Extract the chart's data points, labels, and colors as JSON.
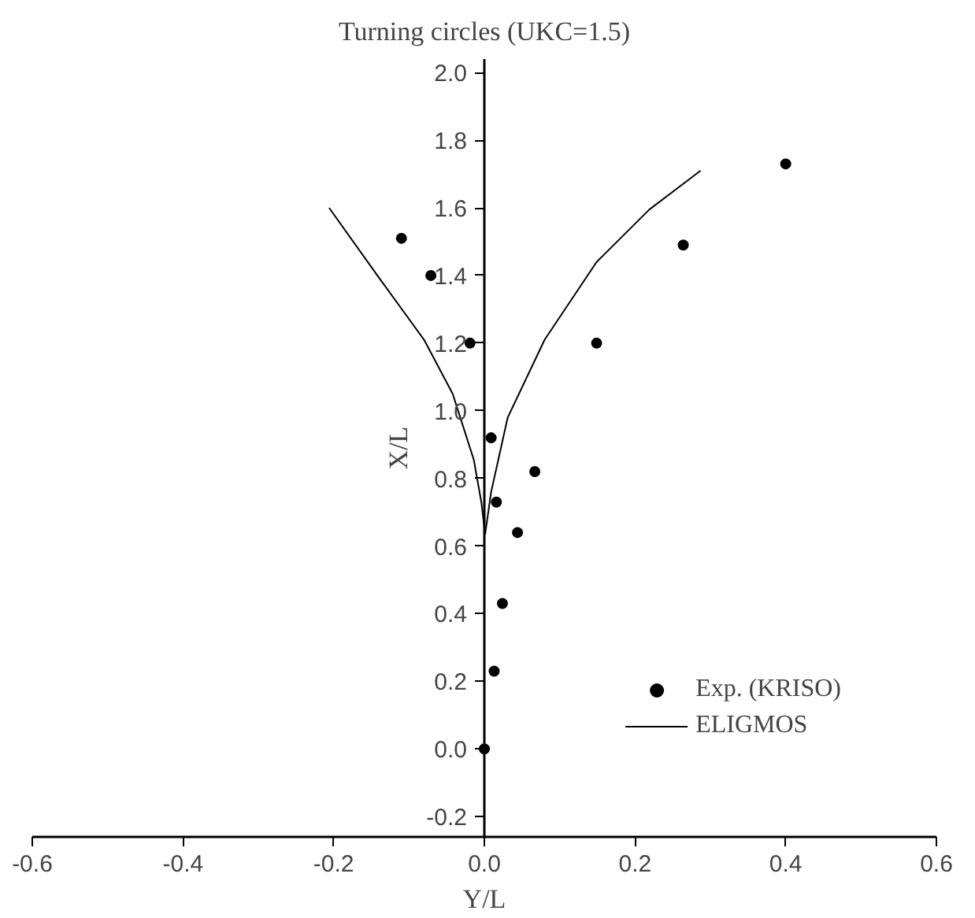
{
  "chart_data": {
    "type": "scatter",
    "title": "Turning circles (UKC=1.5)",
    "xlabel": "Y/L",
    "ylabel": "X/L",
    "xlim": [
      -0.6,
      0.6
    ],
    "xticks": [
      {
        "value": -0.6,
        "label": "-0.6"
      },
      {
        "value": -0.4,
        "label": "-0.4"
      },
      {
        "value": -0.2,
        "label": "-0.2"
      },
      {
        "value": 0,
        "label": "0.0"
      },
      {
        "value": 0.2,
        "label": "0.2"
      },
      {
        "value": 0.4,
        "label": "0.4"
      },
      {
        "value": 0.6,
        "label": "0.6"
      }
    ],
    "ylim": [
      -0.26,
      2.04
    ],
    "yticks": [
      {
        "value": -0.2,
        "label": "-0.2"
      },
      {
        "value": 0,
        "label": "0.0"
      },
      {
        "value": 0.2,
        "label": "0.2"
      },
      {
        "value": 0.4,
        "label": "0.4"
      },
      {
        "value": 0.6,
        "label": "0.6"
      },
      {
        "value": 0.8,
        "label": "0.8"
      },
      {
        "value": 1,
        "label": "1.0"
      },
      {
        "value": 1.2,
        "label": "1.2"
      },
      {
        "value": 1.4,
        "label": "1.4"
      },
      {
        "value": 1.6,
        "label": "1.6"
      },
      {
        "value": 1.8,
        "label": "1.8"
      },
      {
        "value": 2,
        "label": "2.0"
      }
    ],
    "grid": false,
    "legend": "bottom right",
    "series": [
      {
        "name": "Exp. (KRISO)",
        "marker": "circle",
        "color": "#000000",
        "x": [
          -0.11,
          -0.071,
          -0.019,
          0.009,
          0.016,
          0.067,
          0.044,
          0.149,
          0.264,
          0.4,
          0.024,
          0.013,
          0.0
        ],
        "values": [
          1.51,
          1.4,
          1.2,
          0.92,
          0.73,
          0.82,
          0.64,
          1.2,
          1.49,
          1.73,
          0.43,
          0.23,
          0.0
        ]
      },
      {
        "name": "ELIGMOS",
        "type": "line",
        "line_style": "solid",
        "color": "#000000",
        "x": [
          -0.206,
          -0.142,
          -0.08,
          -0.042,
          -0.014,
          -0.004,
          0.001,
          0.009,
          0.031,
          0.08,
          0.149,
          0.219,
          0.287
        ],
        "values": [
          1.6,
          1.4,
          1.21,
          1.05,
          0.855,
          0.73,
          0.635,
          0.76,
          0.98,
          1.21,
          1.44,
          1.595,
          1.71
        ]
      }
    ]
  }
}
